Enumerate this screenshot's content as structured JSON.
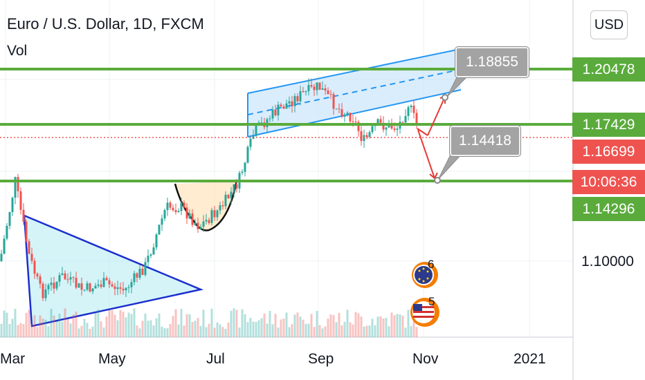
{
  "header": {
    "symbol": "Euro / U.S. Dollar, 1D, FXCM",
    "volume_label": "Vol"
  },
  "currency_button": "USD",
  "colors": {
    "up": "#26a69a",
    "down": "#ef5350",
    "level": "#5aab3c",
    "channel": "#2196f3",
    "triangle": "#1a2fcf",
    "current": "#ef5350"
  },
  "price_labels": [
    {
      "text": "1.20478",
      "color": "#5aab3c"
    },
    {
      "text": "1.17429",
      "color": "#5aab3c"
    },
    {
      "text": "1.16699",
      "color": "#ef5350"
    },
    {
      "text": "10:06:36",
      "color": "#ef5350"
    },
    {
      "text": "1.14296",
      "color": "#5aab3c"
    }
  ],
  "yaxis_ticks": [
    "1.10000"
  ],
  "xaxis_ticks": [
    "Mar",
    "May",
    "Jul",
    "Sep",
    "Nov",
    "2021"
  ],
  "callouts": [
    "1.18855",
    "1.14418"
  ],
  "events": [
    "6",
    "5"
  ],
  "chart_data": {
    "type": "candlestick",
    "title": "Euro / U.S. Dollar, 1D, FXCM",
    "ylim": [
      1.065,
      1.225
    ],
    "x": [
      "Mar",
      "May",
      "Jul",
      "Sep",
      "Nov",
      "2021"
    ],
    "support_resistance": [
      1.20478,
      1.17429,
      1.14296
    ],
    "last_price": 1.16699,
    "targets": [
      1.18855,
      1.14418
    ],
    "countdown": "10:06:36",
    "grid": true,
    "annotations": [
      "symmetrical triangle",
      "cup and handle",
      "ascending channel"
    ]
  }
}
